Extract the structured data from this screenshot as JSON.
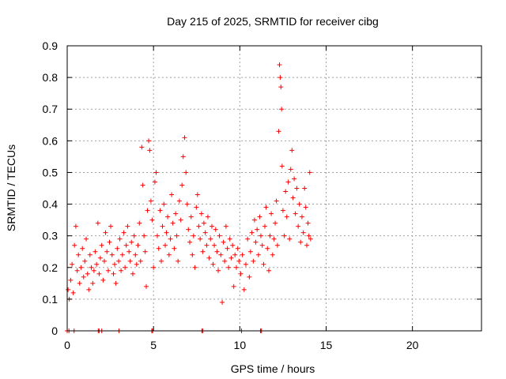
{
  "chart_data": {
    "type": "scatter",
    "title": "Day 215 of 2025, SRMTID for receiver cibg",
    "xlabel": "GPS time / hours",
    "ylabel": "SRMTID / TECUs",
    "xlim": [
      0,
      24
    ],
    "ylim": [
      0,
      0.9
    ],
    "x_ticks": [
      0,
      5,
      10,
      15,
      20
    ],
    "x_tick_labels": [
      "0",
      "5",
      "10",
      "15",
      "20"
    ],
    "y_ticks": [
      0,
      0.1,
      0.2,
      0.3,
      0.4,
      0.5,
      0.6,
      0.7,
      0.8,
      0.9
    ],
    "y_tick_labels": [
      "0",
      "0.1",
      "0.2",
      "0.3",
      "0.4",
      "0.5",
      "0.6",
      "0.7",
      "0.8",
      "0.9"
    ],
    "grid": true,
    "marker": "+",
    "color": "#ff0000",
    "series": [
      {
        "name": "SRMTID",
        "points": [
          [
            0.05,
            0.13
          ],
          [
            0.12,
            0.1
          ],
          [
            0.2,
            0.16
          ],
          [
            0.28,
            0.21
          ],
          [
            0.35,
            0.12
          ],
          [
            0.42,
            0.27
          ],
          [
            0.5,
            0.33
          ],
          [
            0.58,
            0.19
          ],
          [
            0.65,
            0.24
          ],
          [
            0.72,
            0.15
          ],
          [
            0.8,
            0.2
          ],
          [
            0.88,
            0.26
          ],
          [
            0.95,
            0.17
          ],
          [
            1.02,
            0.22
          ],
          [
            1.1,
            0.29
          ],
          [
            1.18,
            0.18
          ],
          [
            1.25,
            0.13
          ],
          [
            1.32,
            0.24
          ],
          [
            1.4,
            0.2
          ],
          [
            1.48,
            0.15
          ],
          [
            1.55,
            0.19
          ],
          [
            1.62,
            0.25
          ],
          [
            1.7,
            0.21
          ],
          [
            1.78,
            0.34
          ],
          [
            1.85,
            0.18
          ],
          [
            1.92,
            0.23
          ],
          [
            2.0,
            0.27
          ],
          [
            2.08,
            0.16
          ],
          [
            2.15,
            0.22
          ],
          [
            2.22,
            0.31
          ],
          [
            2.3,
            0.25
          ],
          [
            2.38,
            0.19
          ],
          [
            2.45,
            0.28
          ],
          [
            2.52,
            0.33
          ],
          [
            2.6,
            0.24
          ],
          [
            2.68,
            0.18
          ],
          [
            2.75,
            0.21
          ],
          [
            2.82,
            0.15
          ],
          [
            2.9,
            0.26
          ],
          [
            2.98,
            0.22
          ],
          [
            3.05,
            0.29
          ],
          [
            3.12,
            0.19
          ],
          [
            3.2,
            0.24
          ],
          [
            3.28,
            0.31
          ],
          [
            3.35,
            0.2
          ],
          [
            3.42,
            0.27
          ],
          [
            3.5,
            0.33
          ],
          [
            3.58,
            0.25
          ],
          [
            3.65,
            0.22
          ],
          [
            3.72,
            0.28
          ],
          [
            3.8,
            0.18
          ],
          [
            3.88,
            0.3
          ],
          [
            3.95,
            0.24
          ],
          [
            4.02,
            0.21
          ],
          [
            4.1,
            0.27
          ],
          [
            4.18,
            0.34
          ],
          [
            4.25,
            0.22
          ],
          [
            4.32,
            0.58
          ],
          [
            4.38,
            0.46
          ],
          [
            4.45,
            0.3
          ],
          [
            4.52,
            0.25
          ],
          [
            4.58,
            0.14
          ],
          [
            4.65,
            0.38
          ],
          [
            4.72,
            0.6
          ],
          [
            4.78,
            0.57
          ],
          [
            4.85,
            0.41
          ],
          [
            4.92,
            0.35
          ],
          [
            5.0,
            0.2
          ],
          [
            5.08,
            0.47
          ],
          [
            5.15,
            0.5
          ],
          [
            5.22,
            0.3
          ],
          [
            5.3,
            0.26
          ],
          [
            5.38,
            0.38
          ],
          [
            5.45,
            0.22
          ],
          [
            5.52,
            0.33
          ],
          [
            5.6,
            0.4
          ],
          [
            5.68,
            0.27
          ],
          [
            5.75,
            0.31
          ],
          [
            5.82,
            0.36
          ],
          [
            5.9,
            0.24
          ],
          [
            5.98,
            0.29
          ],
          [
            6.05,
            0.43
          ],
          [
            6.12,
            0.34
          ],
          [
            6.2,
            0.26
          ],
          [
            6.28,
            0.37
          ],
          [
            6.35,
            0.3
          ],
          [
            6.42,
            0.22
          ],
          [
            6.5,
            0.41
          ],
          [
            6.58,
            0.35
          ],
          [
            6.65,
            0.46
          ],
          [
            6.72,
            0.55
          ],
          [
            6.8,
            0.61
          ],
          [
            6.88,
            0.5
          ],
          [
            6.95,
            0.4
          ],
          [
            7.02,
            0.32
          ],
          [
            7.1,
            0.28
          ],
          [
            7.18,
            0.36
          ],
          [
            7.25,
            0.24
          ],
          [
            7.32,
            0.3
          ],
          [
            7.4,
            0.2
          ],
          [
            7.48,
            0.39
          ],
          [
            7.55,
            0.43
          ],
          [
            7.62,
            0.33
          ],
          [
            7.7,
            0.29
          ],
          [
            7.78,
            0.37
          ],
          [
            7.85,
            0.25
          ],
          [
            7.92,
            0.34
          ],
          [
            8.0,
            0.31
          ],
          [
            8.08,
            0.27
          ],
          [
            8.15,
            0.36
          ],
          [
            8.22,
            0.23
          ],
          [
            8.3,
            0.29
          ],
          [
            8.38,
            0.33
          ],
          [
            8.45,
            0.21
          ],
          [
            8.52,
            0.27
          ],
          [
            8.6,
            0.32
          ],
          [
            8.68,
            0.25
          ],
          [
            8.75,
            0.19
          ],
          [
            8.82,
            0.3
          ],
          [
            8.9,
            0.24
          ],
          [
            8.98,
            0.09
          ],
          [
            9.05,
            0.28
          ],
          [
            9.12,
            0.22
          ],
          [
            9.2,
            0.33
          ],
          [
            9.28,
            0.26
          ],
          [
            9.35,
            0.2
          ],
          [
            9.42,
            0.29
          ],
          [
            9.5,
            0.23
          ],
          [
            9.58,
            0.27
          ],
          [
            9.65,
            0.14
          ],
          [
            9.72,
            0.24
          ],
          [
            9.8,
            0.2
          ],
          [
            9.88,
            0.26
          ],
          [
            9.95,
            0.22
          ],
          [
            10.05,
            0.18
          ],
          [
            10.15,
            0.24
          ],
          [
            10.25,
            0.13
          ],
          [
            10.35,
            0.21
          ],
          [
            10.45,
            0.29
          ],
          [
            10.55,
            0.17
          ],
          [
            10.62,
            0.25
          ],
          [
            10.7,
            0.31
          ],
          [
            10.78,
            0.22
          ],
          [
            10.85,
            0.35
          ],
          [
            10.92,
            0.28
          ],
          [
            11.0,
            0.32
          ],
          [
            11.08,
            0.24
          ],
          [
            11.15,
            0.36
          ],
          [
            11.22,
            0.3
          ],
          [
            11.3,
            0.27
          ],
          [
            11.38,
            0.21
          ],
          [
            11.45,
            0.33
          ],
          [
            11.52,
            0.39
          ],
          [
            11.6,
            0.26
          ],
          [
            11.68,
            0.19
          ],
          [
            11.75,
            0.3
          ],
          [
            11.82,
            0.37
          ],
          [
            11.9,
            0.24
          ],
          [
            11.98,
            0.29
          ],
          [
            12.05,
            0.34
          ],
          [
            12.12,
            0.41
          ],
          [
            12.18,
            0.27
          ],
          [
            12.25,
            0.63
          ],
          [
            12.3,
            0.84
          ],
          [
            12.34,
            0.8
          ],
          [
            12.38,
            0.77
          ],
          [
            12.42,
            0.7
          ],
          [
            12.45,
            0.52
          ],
          [
            12.5,
            0.38
          ],
          [
            12.58,
            0.3
          ],
          [
            12.65,
            0.44
          ],
          [
            12.72,
            0.36
          ],
          [
            12.8,
            0.47
          ],
          [
            12.88,
            0.29
          ],
          [
            12.95,
            0.51
          ],
          [
            13.02,
            0.57
          ],
          [
            13.08,
            0.42
          ],
          [
            13.15,
            0.48
          ],
          [
            13.22,
            0.37
          ],
          [
            13.3,
            0.45
          ],
          [
            13.38,
            0.33
          ],
          [
            13.45,
            0.4
          ],
          [
            13.52,
            0.28
          ],
          [
            13.6,
            0.36
          ],
          [
            13.68,
            0.31
          ],
          [
            13.75,
            0.45
          ],
          [
            13.82,
            0.39
          ],
          [
            13.88,
            0.27
          ],
          [
            13.95,
            0.34
          ],
          [
            14.0,
            0.3
          ],
          [
            14.05,
            0.5
          ],
          [
            14.1,
            0.29
          ]
        ]
      }
    ],
    "zero_points_x": [
      0.0,
      0.1,
      0.4,
      1.8,
      1.85,
      2.0,
      3.0,
      4.9,
      4.95,
      7.8,
      7.85,
      10.1,
      11.2,
      11.25
    ]
  }
}
